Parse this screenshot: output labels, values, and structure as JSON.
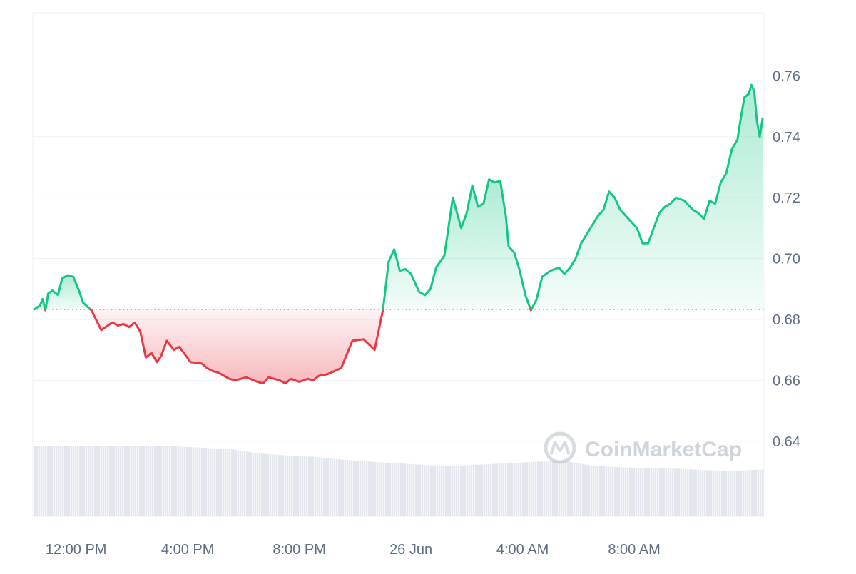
{
  "watermark": {
    "text": "CoinMarketCap",
    "logo_icon": "coinmarketcap-logo-icon"
  },
  "colors": {
    "up": "#16c784",
    "down": "#ea3943",
    "grid": "#eff2f5",
    "axis_text": "#616e85",
    "volume": "#d9dde5"
  },
  "chart_data": {
    "type": "line",
    "title": "",
    "xlabel": "",
    "ylabel": "",
    "baseline": 0.6833,
    "ylim": [
      0.62,
      0.78
    ],
    "yticks": [
      0.64,
      0.66,
      0.68,
      0.7,
      0.72,
      0.74,
      0.76
    ],
    "ytick_labels": [
      "0.64",
      "0.66",
      "0.68",
      "0.70",
      "0.72",
      "0.74",
      "0.76"
    ],
    "xlim": [
      "25 Jun 10:30",
      "26 Jun 12:30"
    ],
    "xticks": [
      "25 Jun 12:00",
      "25 Jun 16:00",
      "25 Jun 20:00",
      "26 Jun 00:00",
      "26 Jun 04:00",
      "26 Jun 08:00"
    ],
    "xtick_labels": [
      "12:00 PM",
      "4:00 PM",
      "8:00 PM",
      "26 Jun",
      "4:00 AM",
      "8:00 AM"
    ],
    "grid": true,
    "price": {
      "x_hours_from_25_Jun_10_30": [
        0,
        0.2,
        0.3,
        0.4,
        0.5,
        0.65,
        0.85,
        1.0,
        1.2,
        1.4,
        1.6,
        1.75,
        2.05,
        2.4,
        2.8,
        3.0,
        3.2,
        3.4,
        3.6,
        3.8,
        4.0,
        4.2,
        4.4,
        4.55,
        4.75,
        5.0,
        5.2,
        5.6,
        6.0,
        6.2,
        6.4,
        6.6,
        6.8,
        7.0,
        7.2,
        7.6,
        8.0,
        8.2,
        8.4,
        8.8,
        9.0,
        9.2,
        9.5,
        9.8,
        10.0,
        10.2,
        10.5,
        11.0,
        11.4,
        11.8,
        12.2,
        12.5,
        12.7,
        12.9,
        13.1,
        13.3,
        13.5,
        13.8,
        14.0,
        14.2,
        14.4,
        14.7,
        15.0,
        15.3,
        15.5,
        15.7,
        15.9,
        16.1,
        16.3,
        16.5,
        16.7,
        16.9,
        17.0,
        17.2,
        17.4,
        17.6,
        17.8,
        18.0,
        18.2,
        18.5,
        18.8,
        19.0,
        19.2,
        19.4,
        19.6,
        19.8,
        20.0,
        20.2,
        20.4,
        20.6,
        20.8,
        21.0,
        21.3,
        21.6,
        21.8,
        22.0,
        22.2,
        22.4,
        22.6,
        22.8,
        23.0,
        23.3,
        23.6,
        23.8,
        24.0,
        24.2,
        24.4,
        24.6,
        24.8,
        25.0,
        25.2,
        25.3,
        25.45,
        25.6,
        25.7,
        25.8,
        25.9,
        26.0,
        26.1
      ],
      "y": [
        0.6833,
        0.6845,
        0.6867,
        0.683,
        0.6885,
        0.6895,
        0.688,
        0.6935,
        0.6945,
        0.694,
        0.6895,
        0.6855,
        0.683,
        0.6765,
        0.679,
        0.678,
        0.6785,
        0.6775,
        0.679,
        0.676,
        0.6675,
        0.669,
        0.666,
        0.668,
        0.673,
        0.67,
        0.671,
        0.666,
        0.6655,
        0.664,
        0.663,
        0.6625,
        0.6615,
        0.6605,
        0.66,
        0.661,
        0.6595,
        0.659,
        0.661,
        0.66,
        0.659,
        0.6605,
        0.6595,
        0.6605,
        0.66,
        0.6615,
        0.662,
        0.664,
        0.673,
        0.6735,
        0.67,
        0.6833,
        0.699,
        0.703,
        0.696,
        0.6965,
        0.695,
        0.689,
        0.688,
        0.69,
        0.697,
        0.701,
        0.72,
        0.71,
        0.715,
        0.724,
        0.717,
        0.718,
        0.726,
        0.725,
        0.7255,
        0.714,
        0.704,
        0.702,
        0.696,
        0.688,
        0.683,
        0.6865,
        0.694,
        0.696,
        0.697,
        0.695,
        0.697,
        0.7,
        0.705,
        0.708,
        0.711,
        0.714,
        0.716,
        0.722,
        0.72,
        0.716,
        0.713,
        0.71,
        0.705,
        0.705,
        0.71,
        0.715,
        0.717,
        0.718,
        0.72,
        0.719,
        0.716,
        0.715,
        0.713,
        0.719,
        0.718,
        0.725,
        0.728,
        0.736,
        0.739,
        0.745,
        0.753,
        0.754,
        0.757,
        0.755,
        0.745,
        0.74,
        0.746
      ]
    },
    "volume": {
      "note": "relative volume level per segment (fraction of the tallest bar)",
      "x_hours_from_25_Jun_10_30": [
        0,
        2,
        4,
        5,
        6,
        7,
        8,
        9,
        10,
        11,
        12,
        13,
        14,
        15,
        16,
        17,
        18,
        19,
        20,
        21,
        22,
        23,
        24,
        25,
        26.1
      ],
      "level": [
        1.0,
        1.0,
        1.0,
        1.0,
        0.98,
        0.96,
        0.9,
        0.87,
        0.85,
        0.81,
        0.78,
        0.76,
        0.73,
        0.72,
        0.74,
        0.76,
        0.78,
        0.79,
        0.72,
        0.7,
        0.69,
        0.68,
        0.66,
        0.65,
        0.67
      ]
    }
  }
}
